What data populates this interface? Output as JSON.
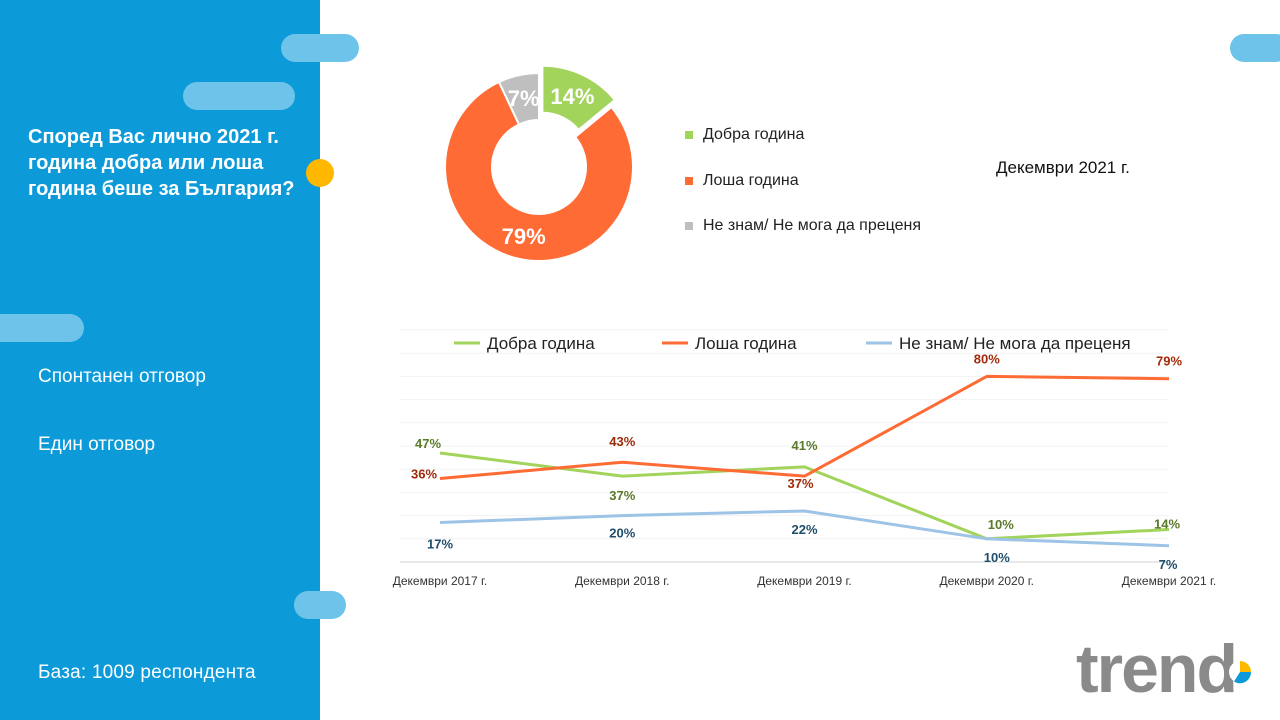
{
  "sidebar": {
    "question": "Според Вас лично 2021 г. година добра или лоша година беше за България?",
    "note_1": "Спонтанен отговор",
    "note_2": "Един отговор",
    "base": "База:  1009  респондента"
  },
  "colors": {
    "sidebar_bg": "#0d9ad9",
    "pill": "#6ec3ea",
    "accent_yellow": "#ffb700",
    "good": "#a2d35b",
    "bad": "#ff6b35",
    "dont_know": "#bfbfbf",
    "dont_know_line": "#9dc3e6",
    "label_good": "#5a7a2a",
    "label_bad": "#a12a0a",
    "label_dont_know": "#1f4e6a"
  },
  "logo": {
    "text": "trend"
  },
  "chart_data": [
    {
      "type": "pie",
      "variant": "donut",
      "subtitle": "Декември 2021 г.",
      "legend_placement": "right",
      "categories": [
        "Добра година",
        "Лоша година",
        "Не знам/ Не мога да преценя"
      ],
      "values": [
        14,
        79,
        7
      ],
      "value_labels": [
        "14%",
        "79%",
        "7%"
      ],
      "exploded": "Добра година"
    },
    {
      "type": "line",
      "legend_placement": "top",
      "x": [
        "Декември 2017 г.",
        "Декември 2018 г.",
        "Декември 2019 г.",
        "Декември 2020 г.",
        "Декември 2021 г."
      ],
      "ylim": [
        0,
        100
      ],
      "grid": true,
      "series": [
        {
          "name": "Добра година",
          "values": [
            47,
            37,
            41,
            10,
            14
          ],
          "labels": [
            "47%",
            "37%",
            "41%",
            "10%",
            "14%"
          ]
        },
        {
          "name": "Лоша година",
          "values": [
            36,
            43,
            37,
            80,
            79
          ],
          "labels": [
            "36%",
            "43%",
            "37%",
            "80%",
            "79%"
          ]
        },
        {
          "name": "Не знам/ Не мога да преценя",
          "values": [
            17,
            20,
            22,
            10,
            7
          ],
          "labels": [
            "17%",
            "20%",
            "22%",
            "10%",
            "7%"
          ]
        }
      ]
    }
  ]
}
